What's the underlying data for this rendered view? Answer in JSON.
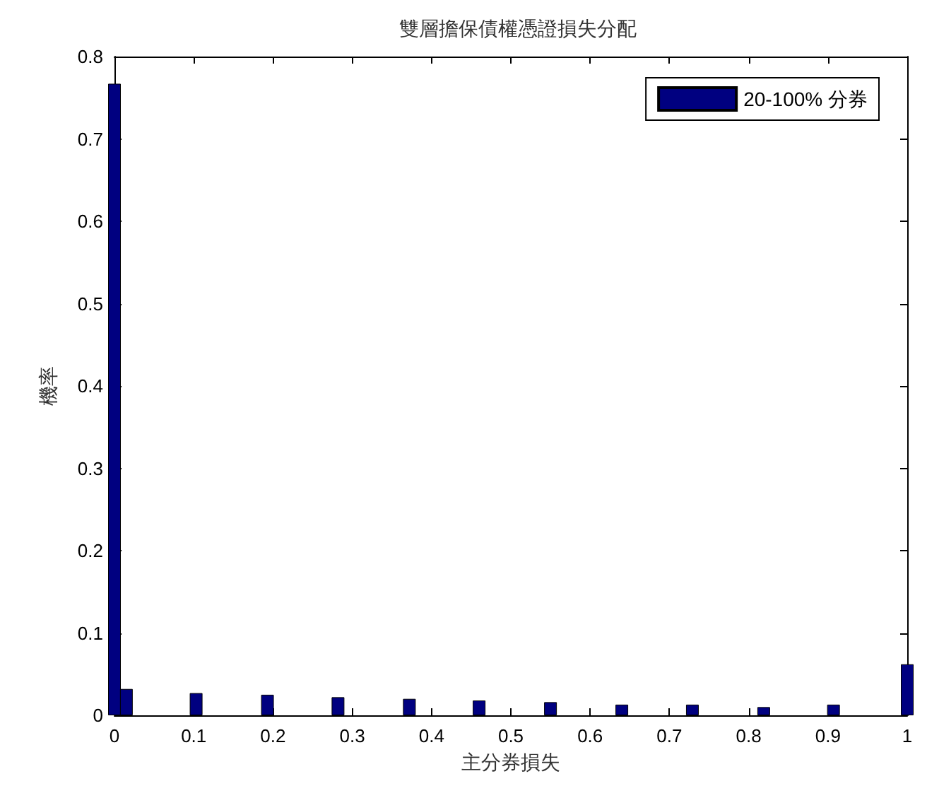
{
  "chart_data": {
    "type": "bar",
    "title": "雙層擔保債權憑證損失分配",
    "xlabel": "主分券損失",
    "ylabel": "機率",
    "x": [
      0,
      0.015,
      0.103,
      0.193,
      0.282,
      0.372,
      0.46,
      0.55,
      0.64,
      0.729,
      0.819,
      0.907,
      1
    ],
    "series": [
      {
        "name": "20-100% 分券",
        "color": "#000080",
        "values": [
          0.767,
          0.032,
          0.027,
          0.025,
          0.022,
          0.02,
          0.018,
          0.016,
          0.013,
          0.013,
          0.01,
          0.013,
          0.062
        ]
      }
    ],
    "xlim": [
      0,
      1
    ],
    "xticks": [
      0,
      0.1,
      0.2,
      0.3,
      0.4,
      0.5,
      0.6,
      0.7,
      0.8,
      0.9,
      1
    ],
    "ylim": [
      0,
      0.8
    ],
    "yticks": [
      0,
      0.1,
      0.2,
      0.3,
      0.4,
      0.5,
      0.6,
      0.7,
      0.8
    ],
    "grid": false,
    "legend": "top right"
  }
}
